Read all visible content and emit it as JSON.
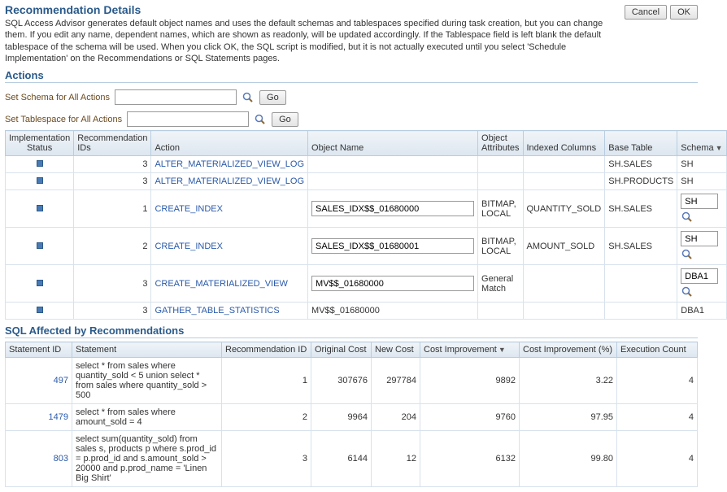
{
  "header": {
    "title": "Recommendation Details",
    "description": "SQL Access Advisor generates default object names and uses the default schemas and tablespaces specified during task creation, but you can change them. If you edit any name, dependent names, which are shown as readonly, will be updated accordingly. If the Tablespace field is left blank the default tablespace of the schema will be used. When you click OK, the SQL script is modified, but it is not actually executed until you select 'Schedule Implementation' on the Recommendations or SQL Statements pages.",
    "cancel": "Cancel",
    "ok": "OK"
  },
  "actions": {
    "heading": "Actions",
    "schema_label": "Set Schema for All Actions",
    "tablespace_label": "Set Tablespace for All Actions",
    "go": "Go"
  },
  "rec_cols": {
    "status": "Implementation Status",
    "rec_ids": "Recommendation IDs",
    "action": "Action",
    "obj_name": "Object Name",
    "obj_attrs": "Object Attributes",
    "idx_cols": "Indexed Columns",
    "base_table": "Base Table",
    "schema": "Schema"
  },
  "rec_rows": [
    {
      "rec_id": "3",
      "action": "ALTER_MATERIALIZED_VIEW_LOG",
      "obj_name": "",
      "obj_input": false,
      "attrs": "",
      "idx": "",
      "base": "SH.SALES",
      "schema": "SH",
      "schema_input": false
    },
    {
      "rec_id": "3",
      "action": "ALTER_MATERIALIZED_VIEW_LOG",
      "obj_name": "",
      "obj_input": false,
      "attrs": "",
      "idx": "",
      "base": "SH.PRODUCTS",
      "schema": "SH",
      "schema_input": false
    },
    {
      "rec_id": "1",
      "action": "CREATE_INDEX",
      "obj_name": "SALES_IDX$$_01680000",
      "obj_input": true,
      "attrs": "BITMAP, LOCAL",
      "idx": "QUANTITY_SOLD",
      "base": "SH.SALES",
      "schema": "SH",
      "schema_input": true
    },
    {
      "rec_id": "2",
      "action": "CREATE_INDEX",
      "obj_name": "SALES_IDX$$_01680001",
      "obj_input": true,
      "attrs": "BITMAP, LOCAL",
      "idx": "AMOUNT_SOLD",
      "base": "SH.SALES",
      "schema": "SH",
      "schema_input": true
    },
    {
      "rec_id": "3",
      "action": "CREATE_MATERIALIZED_VIEW",
      "obj_name": "MV$$_01680000",
      "obj_input": true,
      "attrs": "General Match",
      "idx": "",
      "base": "",
      "schema": "DBA1",
      "schema_input": true
    },
    {
      "rec_id": "3",
      "action": "GATHER_TABLE_STATISTICS",
      "obj_name": "MV$$_01680000",
      "obj_input": false,
      "attrs": "",
      "idx": "",
      "base": "",
      "schema": "DBA1",
      "schema_input": false
    }
  ],
  "sql": {
    "heading": "SQL Affected by Recommendations",
    "cols": {
      "stmt_id": "Statement ID",
      "stmt": "Statement",
      "rec_id": "Recommendation ID",
      "orig": "Original Cost",
      "new": "New Cost",
      "imp": "Cost Improvement",
      "imp_pct": "Cost Improvement (%)",
      "exec": "Execution Count"
    },
    "rows": [
      {
        "id": "497",
        "stmt": "select * from sales where quantity_sold < 5 union select * from sales where quantity_sold > 500",
        "rec": "1",
        "orig": "307676",
        "new": "297784",
        "imp": "9892",
        "pct": "3.22",
        "exec": "4"
      },
      {
        "id": "1479",
        "stmt": "select * from sales where amount_sold = 4",
        "rec": "2",
        "orig": "9964",
        "new": "204",
        "imp": "9760",
        "pct": "97.95",
        "exec": "4"
      },
      {
        "id": "803",
        "stmt": "select sum(quantity_sold) from sales s, products p where s.prod_id = p.prod_id and s.amount_sold > 20000 and p.prod_name = 'Linen Big Shirt'",
        "rec": "3",
        "orig": "6144",
        "new": "12",
        "imp": "6132",
        "pct": "99.80",
        "exec": "4"
      }
    ]
  }
}
